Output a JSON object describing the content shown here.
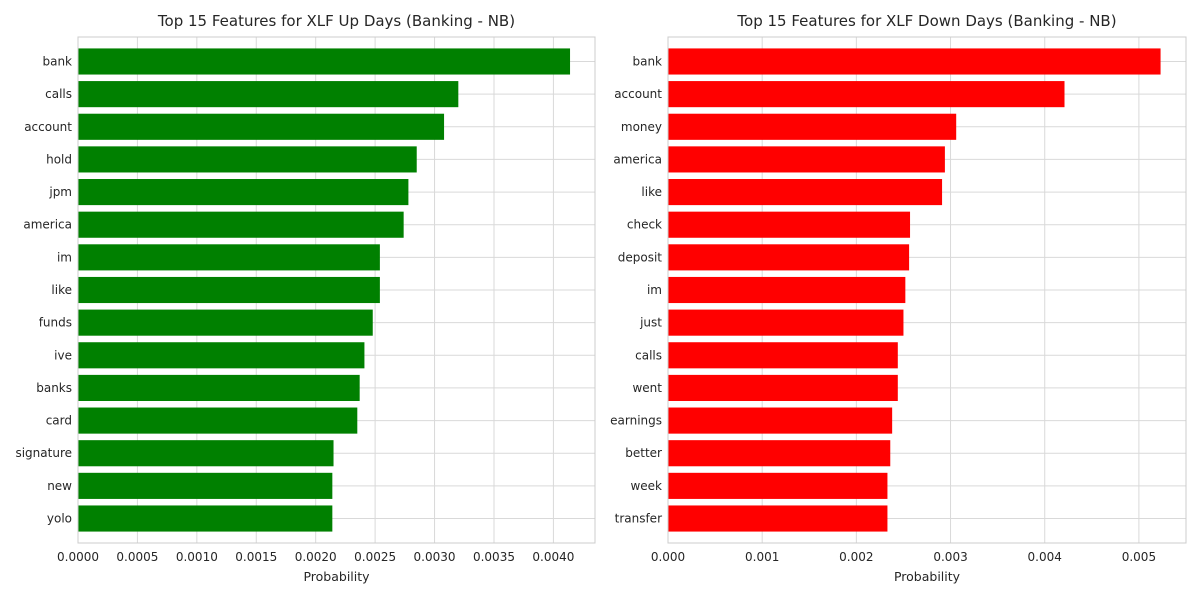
{
  "chart_data": [
    {
      "type": "bar",
      "orientation": "horizontal",
      "title": "Top 15 Features for XLF Up Days (Banking - NB)",
      "xlabel": "Probability",
      "ylabel": "",
      "color": "#008000",
      "xlim": [
        0,
        0.00435
      ],
      "xticks": [
        "0.0000",
        "0.0005",
        "0.0010",
        "0.0015",
        "0.0020",
        "0.0025",
        "0.0030",
        "0.0035",
        "0.0040"
      ],
      "categories": [
        "bank",
        "calls",
        "account",
        "hold",
        "jpm",
        "america",
        "im",
        "like",
        "funds",
        "ive",
        "banks",
        "card",
        "signature",
        "new",
        "yolo"
      ],
      "values": [
        0.00414,
        0.0032,
        0.00308,
        0.00285,
        0.00278,
        0.00274,
        0.00254,
        0.00254,
        0.00248,
        0.00241,
        0.00237,
        0.00235,
        0.00215,
        0.00214,
        0.00214
      ],
      "grid": true
    },
    {
      "type": "bar",
      "orientation": "horizontal",
      "title": "Top 15 Features for XLF Down Days (Banking - NB)",
      "xlabel": "Probability",
      "ylabel": "",
      "color": "#ff0000",
      "xlim": [
        0,
        0.0055
      ],
      "xticks": [
        "0.000",
        "0.001",
        "0.002",
        "0.003",
        "0.004",
        "0.005"
      ],
      "categories": [
        "bank",
        "account",
        "money",
        "america",
        "like",
        "check",
        "deposit",
        "im",
        "just",
        "calls",
        "went",
        "earnings",
        "better",
        "week",
        "transfer"
      ],
      "values": [
        0.00523,
        0.00421,
        0.00306,
        0.00294,
        0.00291,
        0.00257,
        0.00256,
        0.00252,
        0.0025,
        0.00244,
        0.00244,
        0.00238,
        0.00236,
        0.00233,
        0.00233
      ],
      "grid": true
    }
  ]
}
